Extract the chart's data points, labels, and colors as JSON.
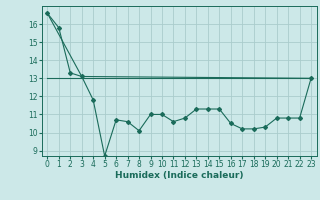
{
  "title": "",
  "xlabel": "Humidex (Indice chaleur)",
  "background_color": "#cce8e8",
  "grid_color": "#aacccc",
  "line_color": "#1a6b5a",
  "xlim": [
    -0.5,
    23.5
  ],
  "ylim": [
    8.7,
    17.0
  ],
  "yticks": [
    9,
    10,
    11,
    12,
    13,
    14,
    15,
    16
  ],
  "xticks": [
    0,
    1,
    2,
    3,
    4,
    5,
    6,
    7,
    8,
    9,
    10,
    11,
    12,
    13,
    14,
    15,
    16,
    17,
    18,
    19,
    20,
    21,
    22,
    23
  ],
  "series1_x": [
    0,
    1,
    2,
    3,
    4,
    5,
    6,
    7,
    8,
    9,
    10,
    11,
    12,
    13,
    14,
    15,
    16,
    17,
    18,
    19,
    20,
    21,
    22,
    23
  ],
  "series1_y": [
    16.6,
    15.8,
    13.3,
    13.1,
    11.8,
    8.7,
    10.7,
    10.6,
    10.1,
    11.0,
    11.0,
    10.6,
    10.8,
    11.3,
    11.3,
    11.3,
    10.5,
    10.2,
    10.2,
    10.3,
    10.8,
    10.8,
    10.8,
    13.0
  ],
  "series2_x": [
    0,
    3,
    23
  ],
  "series2_y": [
    16.6,
    13.1,
    13.0
  ],
  "series3_x": [
    0,
    23
  ],
  "series3_y": [
    13.0,
    13.0
  ],
  "tick_fontsize": 5.5,
  "xlabel_fontsize": 6.5
}
